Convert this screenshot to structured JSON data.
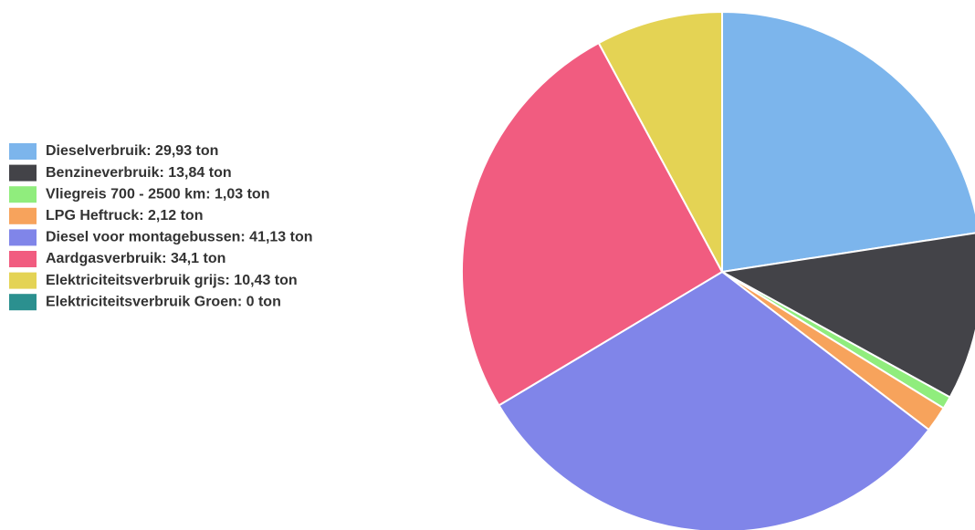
{
  "chart_data": {
    "type": "pie",
    "categories": [
      "Dieselverbruik: 29,93 ton",
      "Benzineverbruik: 13,84 ton",
      "Vliegreis 700 - 2500 km: 1,03 ton",
      "LPG Heftruck: 2,12 ton",
      "Diesel voor montagebussen: 41,13 ton",
      "Aardgasverbruik: 34,1 ton",
      "Elektriciteitsverbruik grijs: 10,43 ton",
      "Elektriciteitsverbruik Groen: 0 ton"
    ],
    "values": [
      29.93,
      13.84,
      1.03,
      2.12,
      41.13,
      34.1,
      10.43,
      0
    ],
    "colors": [
      "#7cb5ec",
      "#434348",
      "#90ed7d",
      "#f7a35c",
      "#8085e9",
      "#f15c80",
      "#e4d354",
      "#2b908f"
    ],
    "legend": "left"
  }
}
